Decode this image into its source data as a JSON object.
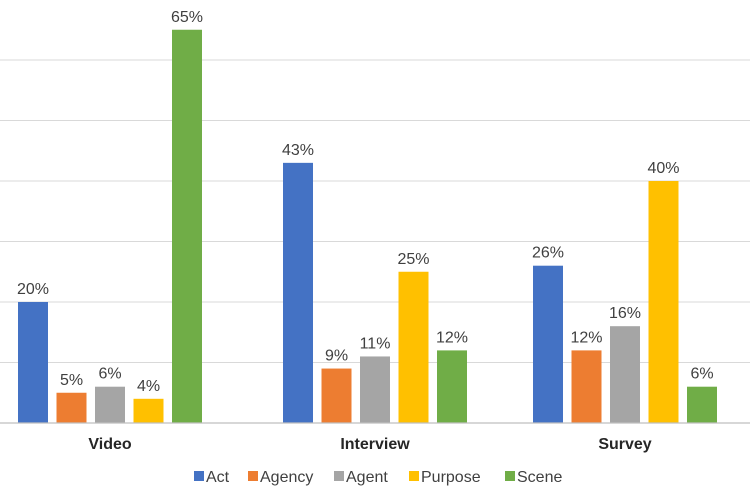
{
  "chart_data": {
    "type": "bar",
    "title": "",
    "xlabel": "",
    "ylabel": "",
    "ylim": [
      0,
      70
    ],
    "grid": true,
    "legend_position": "bottom",
    "categories": [
      "Video",
      "Interview",
      "Survey"
    ],
    "series": [
      {
        "name": "Act",
        "color": "#4472c4",
        "values": [
          20,
          43,
          26
        ],
        "labels": [
          "20%",
          "43%",
          "26%"
        ]
      },
      {
        "name": "Agency",
        "color": "#ed7d31",
        "values": [
          5,
          9,
          12
        ],
        "labels": [
          "5%",
          "9%",
          "12%"
        ]
      },
      {
        "name": "Agent",
        "color": "#a5a5a5",
        "values": [
          6,
          11,
          16
        ],
        "labels": [
          "6%",
          "11%",
          "16%"
        ]
      },
      {
        "name": "Purpose",
        "color": "#ffc000",
        "values": [
          4,
          25,
          40
        ],
        "labels": [
          "4%",
          "25%",
          "40%"
        ]
      },
      {
        "name": "Scene",
        "color": "#70ad47",
        "values": [
          65,
          12,
          6
        ],
        "labels": [
          "65%",
          "12%",
          "6%"
        ]
      }
    ]
  }
}
